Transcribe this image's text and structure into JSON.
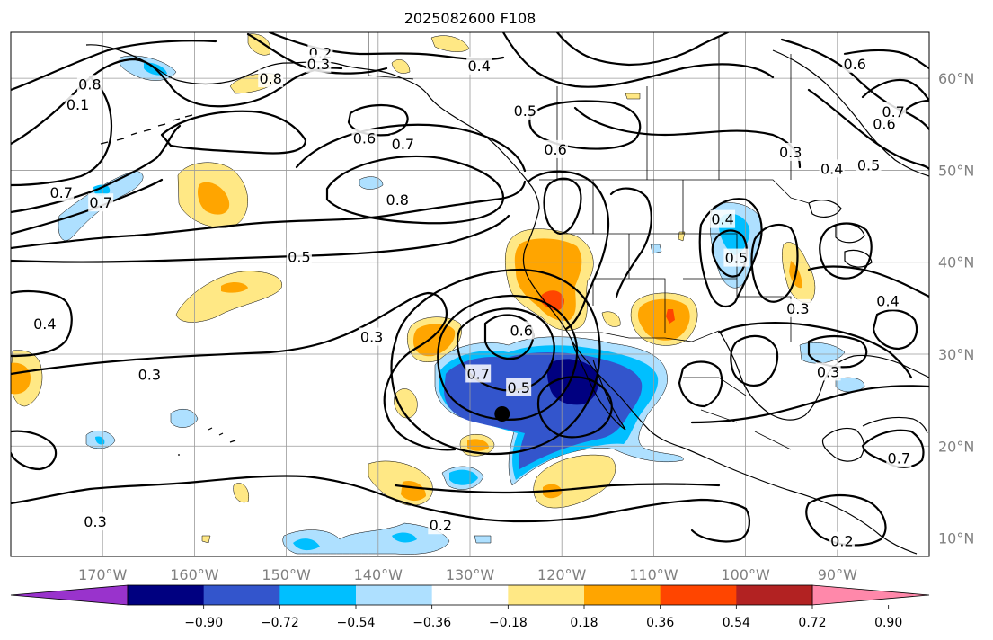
{
  "title": "2025082600 F108",
  "map": {
    "lon_range": [
      -180,
      -80
    ],
    "lat_range": [
      8,
      65
    ],
    "lon_ticks": [
      "170°W",
      "160°W",
      "150°W",
      "140°W",
      "130°W",
      "120°W",
      "110°W",
      "100°W",
      "90°W"
    ],
    "lat_ticks": [
      "10°N",
      "20°N",
      "30°N",
      "40°N",
      "50°N",
      "60°N"
    ],
    "marker": {
      "lon": -126.5,
      "lat": 23.5,
      "shape": "black-dot"
    },
    "contour_labels": [
      {
        "text": "0.2",
        "lon": -146.3,
        "lat": 62.8
      },
      {
        "text": "0.3",
        "lon": -146.5,
        "lat": 61.6
      },
      {
        "text": "0.4",
        "lon": -129.0,
        "lat": 61.4
      },
      {
        "text": "0.6",
        "lon": -88.1,
        "lat": 61.6
      },
      {
        "text": "0.8",
        "lon": -151.7,
        "lat": 60.0
      },
      {
        "text": "0.8",
        "lon": -171.4,
        "lat": 59.4
      },
      {
        "text": "0.1",
        "lon": -172.7,
        "lat": 57.2
      },
      {
        "text": "0.5",
        "lon": -124.0,
        "lat": 56.5
      },
      {
        "text": "0.6",
        "lon": -141.5,
        "lat": 53.5
      },
      {
        "text": "0.7",
        "lon": -137.3,
        "lat": 52.9
      },
      {
        "text": "0.6",
        "lon": -120.7,
        "lat": 52.3
      },
      {
        "text": "0.3",
        "lon": -95.1,
        "lat": 52.0
      },
      {
        "text": "0.6",
        "lon": -84.9,
        "lat": 55.1
      },
      {
        "text": "0.7",
        "lon": -83.9,
        "lat": 56.4
      },
      {
        "text": "0.5",
        "lon": -86.6,
        "lat": 50.6
      },
      {
        "text": "0.4",
        "lon": -90.6,
        "lat": 50.2
      },
      {
        "text": "0.7",
        "lon": -174.5,
        "lat": 47.6
      },
      {
        "text": "0.7",
        "lon": -170.2,
        "lat": 46.5
      },
      {
        "text": "0.8",
        "lon": -137.9,
        "lat": 46.8
      },
      {
        "text": "0.4",
        "lon": -102.5,
        "lat": 44.7
      },
      {
        "text": "0.5",
        "lon": -101.0,
        "lat": 40.5
      },
      {
        "text": "0.5",
        "lon": -148.6,
        "lat": 40.6
      },
      {
        "text": "0.3",
        "lon": -94.3,
        "lat": 35.0
      },
      {
        "text": "0.4",
        "lon": -84.5,
        "lat": 35.8
      },
      {
        "text": "0.4",
        "lon": -176.3,
        "lat": 33.3
      },
      {
        "text": "0.6",
        "lon": -124.4,
        "lat": 32.6
      },
      {
        "text": "0.3",
        "lon": -140.7,
        "lat": 31.9
      },
      {
        "text": "0.3",
        "lon": -91.0,
        "lat": 28.1
      },
      {
        "text": "0.7",
        "lon": -129.1,
        "lat": 27.9
      },
      {
        "text": "0.3",
        "lon": -164.9,
        "lat": 27.8
      },
      {
        "text": "0.5",
        "lon": -124.7,
        "lat": 26.4
      },
      {
        "text": "0.7",
        "lon": -83.3,
        "lat": 18.7
      },
      {
        "text": "0.3",
        "lon": -170.8,
        "lat": 11.8
      },
      {
        "text": "0.2",
        "lon": -133.2,
        "lat": 11.4
      },
      {
        "text": "0.2",
        "lon": -89.5,
        "lat": 9.7
      }
    ]
  },
  "colorbar": {
    "ticks": [
      "−0.90",
      "−0.72",
      "−0.54",
      "−0.36",
      "−0.18",
      "0.18",
      "0.36",
      "0.54",
      "0.72",
      "0.90"
    ],
    "colors": [
      "#9933cc",
      "#000080",
      "#3355cc",
      "#00bfff",
      "#aee0ff",
      "#ffffff",
      "#ffe885",
      "#ffa500",
      "#ff4500",
      "#b22222",
      "#ff88aa"
    ]
  },
  "fill_colors": {
    "light_yellow": "#ffe885",
    "orange": "#ffa500",
    "red_orange": "#ff4500",
    "light_blue": "#aee0ff",
    "deep_sky_blue": "#00bfff",
    "medium_blue": "#3355cc",
    "navy": "#000080"
  }
}
